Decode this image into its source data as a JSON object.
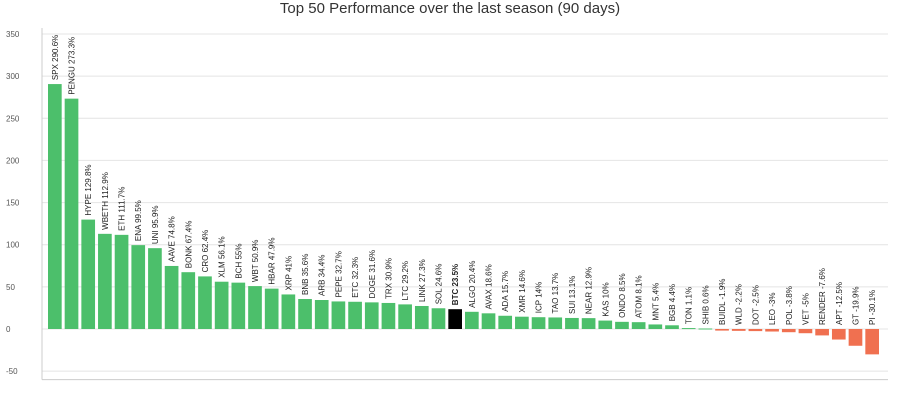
{
  "chart_data": {
    "type": "bar",
    "title": "Top 50 Performance over the last season (90 days)",
    "xlabel": "",
    "ylabel": "",
    "ylim": [
      -60,
      350
    ],
    "yticks": [
      -50,
      0,
      50,
      100,
      150,
      200,
      250,
      300,
      350
    ],
    "grid": true,
    "legend": "none",
    "colors": {
      "positive": "#4cbf6b",
      "negative": "#f07050",
      "highlight": "#000000"
    },
    "highlight": "BTC",
    "bars": [
      {
        "label": "SPX 290.6%",
        "name": "SPX",
        "value": 290.6
      },
      {
        "label": "PENGU 273.3%",
        "name": "PENGU",
        "value": 273.3
      },
      {
        "label": "HYPE 129.8%",
        "name": "HYPE",
        "value": 129.8
      },
      {
        "label": "WBETH 112.9%",
        "name": "WBETH",
        "value": 112.9
      },
      {
        "label": "ETH 111.7%",
        "name": "ETH",
        "value": 111.7
      },
      {
        "label": "ENA 99.5%",
        "name": "ENA",
        "value": 99.5
      },
      {
        "label": "UNI 95.9%",
        "name": "UNI",
        "value": 95.9
      },
      {
        "label": "AAVE 74.8%",
        "name": "AAVE",
        "value": 74.8
      },
      {
        "label": "BONK 67.4%",
        "name": "BONK",
        "value": 67.4
      },
      {
        "label": "CRO 62.4%",
        "name": "CRO",
        "value": 62.4
      },
      {
        "label": "XLM 56.1%",
        "name": "XLM",
        "value": 56.1
      },
      {
        "label": "BCH 55%",
        "name": "BCH",
        "value": 55
      },
      {
        "label": "WBT 50.9%",
        "name": "WBT",
        "value": 50.9
      },
      {
        "label": "HBAR 47.9%",
        "name": "HBAR",
        "value": 47.9
      },
      {
        "label": "XRP 41%",
        "name": "XRP",
        "value": 41
      },
      {
        "label": "BNB 35.6%",
        "name": "BNB",
        "value": 35.6
      },
      {
        "label": "ARB 34.4%",
        "name": "ARB",
        "value": 34.4
      },
      {
        "label": "PEPE 32.7%",
        "name": "PEPE",
        "value": 32.7
      },
      {
        "label": "ETC 32.3%",
        "name": "ETC",
        "value": 32.3
      },
      {
        "label": "DOGE 31.6%",
        "name": "DOGE",
        "value": 31.6
      },
      {
        "label": "TRX 30.9%",
        "name": "TRX",
        "value": 30.9
      },
      {
        "label": "LTC 29.2%",
        "name": "LTC",
        "value": 29.2
      },
      {
        "label": "LINK 27.3%",
        "name": "LINK",
        "value": 27.3
      },
      {
        "label": "SOL 24.6%",
        "name": "SOL",
        "value": 24.6
      },
      {
        "label": "BTC 23.5%",
        "name": "BTC",
        "value": 23.5
      },
      {
        "label": "ALGO 20.4%",
        "name": "ALGO",
        "value": 20.4
      },
      {
        "label": "AVAX 18.6%",
        "name": "AVAX",
        "value": 18.6
      },
      {
        "label": "ADA 15.7%",
        "name": "ADA",
        "value": 15.7
      },
      {
        "label": "XMR 14.6%",
        "name": "XMR",
        "value": 14.6
      },
      {
        "label": "ICP 14%",
        "name": "ICP",
        "value": 14
      },
      {
        "label": "TAO 13.7%",
        "name": "TAO",
        "value": 13.7
      },
      {
        "label": "SUI 13.1%",
        "name": "SUI",
        "value": 13.1
      },
      {
        "label": "NEAR 12.9%",
        "name": "NEAR",
        "value": 12.9
      },
      {
        "label": "KAS 10%",
        "name": "KAS",
        "value": 10
      },
      {
        "label": "ONDO 8.5%",
        "name": "ONDO",
        "value": 8.5
      },
      {
        "label": "ATOM 8.1%",
        "name": "ATOM",
        "value": 8.1
      },
      {
        "label": "MNT 5.4%",
        "name": "MNT",
        "value": 5.4
      },
      {
        "label": "BGB 4.4%",
        "name": "BGB",
        "value": 4.4
      },
      {
        "label": "TON 1.1%",
        "name": "TON",
        "value": 1.1
      },
      {
        "label": "SHIB 0.6%",
        "name": "SHIB",
        "value": 0.6
      },
      {
        "label": "BUIDL -1.9%",
        "name": "BUIDL",
        "value": -1.9
      },
      {
        "label": "WLD -2.2%",
        "name": "WLD",
        "value": -2.2
      },
      {
        "label": "DOT -2.5%",
        "name": "DOT",
        "value": -2.5
      },
      {
        "label": "LEO -3%",
        "name": "LEO",
        "value": -3
      },
      {
        "label": "POL -3.8%",
        "name": "POL",
        "value": -3.8
      },
      {
        "label": "VET -5%",
        "name": "VET",
        "value": -5
      },
      {
        "label": "RENDER -7.6%",
        "name": "RENDER",
        "value": -7.6
      },
      {
        "label": "APT -12.5%",
        "name": "APT",
        "value": -12.5
      },
      {
        "label": "GT -19.9%",
        "name": "GT",
        "value": -19.9
      },
      {
        "label": "PI -30.1%",
        "name": "PI",
        "value": -30.1
      }
    ]
  }
}
